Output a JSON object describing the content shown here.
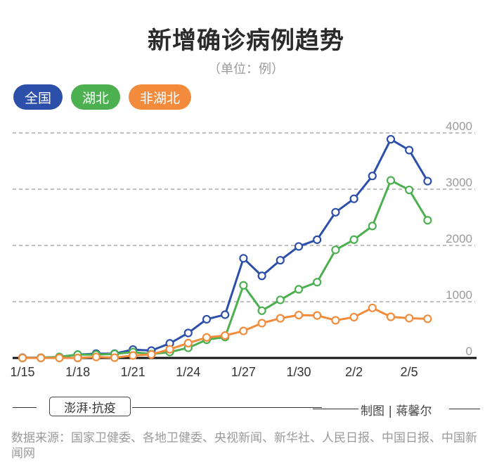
{
  "header": {
    "title": "新增确诊病例趋势",
    "subtitle": "（单位：例）"
  },
  "legend": [
    {
      "label": "全国",
      "color": "#2c4faa"
    },
    {
      "label": "湖北",
      "color": "#4caf50"
    },
    {
      "label": "非湖北",
      "color": "#f28c3c"
    }
  ],
  "footer": {
    "brand": "澎湃·抗疫",
    "credit": "制图 | 蒋馨尔",
    "source": "数据来源：国家卫健委、各地卫健委、央视新闻、新华社、人民日报、中国日报、中国新闻网"
  },
  "chart_data": {
    "type": "line",
    "title": "新增确诊病例趋势",
    "subtitle": "（单位：例）",
    "xlabel": "",
    "ylabel": "例",
    "ylim": [
      0,
      4000
    ],
    "yticks": [
      0,
      1000,
      2000,
      3000,
      4000
    ],
    "grid": true,
    "legend_position": "top-left",
    "x": [
      "1/15",
      "1/16",
      "1/17",
      "1/18",
      "1/19",
      "1/20",
      "1/21",
      "1/22",
      "1/23",
      "1/24",
      "1/25",
      "1/26",
      "1/27",
      "1/28",
      "1/29",
      "1/30",
      "1/31",
      "2/1",
      "2/2",
      "2/3",
      "2/4",
      "2/5",
      "2/6"
    ],
    "xtick_labels": [
      "1/15",
      "1/18",
      "1/21",
      "1/24",
      "1/27",
      "1/30",
      "2/2",
      "2/5"
    ],
    "series": [
      {
        "name": "全国",
        "color": "#2c4faa",
        "values": [
          5,
          4,
          17,
          59,
          77,
          77,
          149,
          131,
          259,
          444,
          688,
          769,
          1771,
          1459,
          1737,
          1982,
          2102,
          2590,
          2829,
          3235,
          3887,
          3694,
          3143
        ]
      },
      {
        "name": "湖北",
        "color": "#4caf50",
        "values": [
          0,
          4,
          17,
          59,
          59,
          72,
          105,
          69,
          105,
          180,
          323,
          371,
          1291,
          840,
          1032,
          1220,
          1347,
          1921,
          2103,
          2345,
          3156,
          2987,
          2447
        ]
      },
      {
        "name": "非湖北",
        "color": "#f28c3c",
        "values": [
          0,
          0,
          0,
          0,
          18,
          5,
          44,
          62,
          154,
          264,
          365,
          398,
          480,
          619,
          705,
          762,
          755,
          669,
          726,
          890,
          731,
          707,
          696
        ]
      }
    ]
  }
}
